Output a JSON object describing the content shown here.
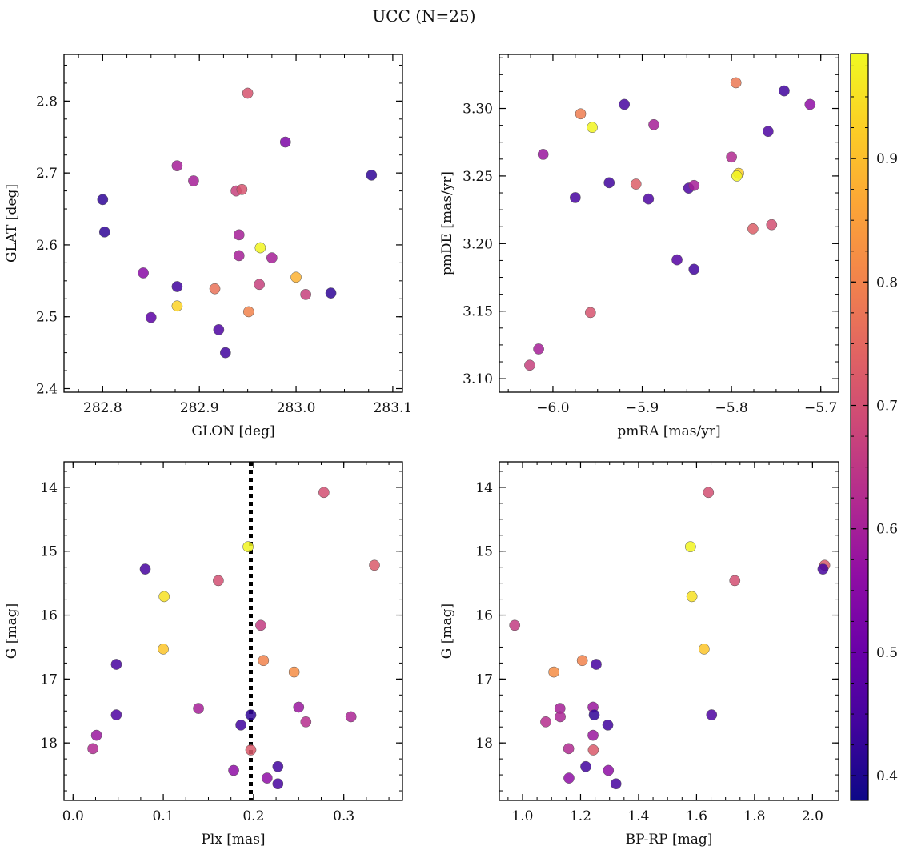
{
  "figure": {
    "title": "UCC (N=25)"
  },
  "colorbar": {
    "colormap": "plasma",
    "range": [
      0.38,
      0.985
    ],
    "ticks": [
      0.4,
      0.5,
      0.6,
      0.7,
      0.8,
      0.9
    ],
    "tick_labels": [
      "0.4",
      "0.5",
      "0.6",
      "0.7",
      "0.8",
      "0.9"
    ]
  },
  "chart_data": [
    {
      "type": "scatter",
      "xlabel": "GLON [deg]",
      "ylabel": "GLAT [deg]",
      "xlim": [
        282.76,
        283.11
      ],
      "ylim": [
        2.395,
        2.865
      ],
      "xticks": [
        282.8,
        282.9,
        283.0,
        283.1
      ],
      "xtick_labels": [
        "282.8",
        "282.9",
        "283.0",
        "283.1"
      ],
      "yticks": [
        2.4,
        2.5,
        2.6,
        2.7,
        2.8
      ],
      "ytick_labels": [
        "2.4",
        "2.5",
        "2.6",
        "2.7",
        "2.8"
      ],
      "points": [
        {
          "x": 282.8,
          "y": 2.663,
          "c": 0.42
        },
        {
          "x": 282.802,
          "y": 2.618,
          "c": 0.42
        },
        {
          "x": 282.842,
          "y": 2.561,
          "c": 0.55
        },
        {
          "x": 282.85,
          "y": 2.499,
          "c": 0.48
        },
        {
          "x": 282.877,
          "y": 2.71,
          "c": 0.6
        },
        {
          "x": 282.877,
          "y": 2.542,
          "c": 0.44
        },
        {
          "x": 282.877,
          "y": 2.515,
          "c": 0.93
        },
        {
          "x": 282.894,
          "y": 2.689,
          "c": 0.6
        },
        {
          "x": 282.916,
          "y": 2.539,
          "c": 0.77
        },
        {
          "x": 282.92,
          "y": 2.482,
          "c": 0.46
        },
        {
          "x": 282.927,
          "y": 2.45,
          "c": 0.44
        },
        {
          "x": 282.938,
          "y": 2.675,
          "c": 0.67
        },
        {
          "x": 282.941,
          "y": 2.614,
          "c": 0.6
        },
        {
          "x": 282.941,
          "y": 2.585,
          "c": 0.6
        },
        {
          "x": 282.944,
          "y": 2.677,
          "c": 0.71
        },
        {
          "x": 282.95,
          "y": 2.811,
          "c": 0.71
        },
        {
          "x": 282.951,
          "y": 2.507,
          "c": 0.8
        },
        {
          "x": 282.962,
          "y": 2.545,
          "c": 0.67
        },
        {
          "x": 282.963,
          "y": 2.596,
          "c": 0.98
        },
        {
          "x": 282.975,
          "y": 2.582,
          "c": 0.6
        },
        {
          "x": 282.989,
          "y": 2.743,
          "c": 0.53
        },
        {
          "x": 283.0,
          "y": 2.555,
          "c": 0.88
        },
        {
          "x": 283.01,
          "y": 2.531,
          "c": 0.67
        },
        {
          "x": 283.036,
          "y": 2.533,
          "c": 0.42
        },
        {
          "x": 283.078,
          "y": 2.697,
          "c": 0.42
        }
      ]
    },
    {
      "type": "scatter",
      "xlabel": "pmRA [mas/yr]",
      "ylabel": "pmDE [mas/yr]",
      "xlim": [
        -6.06,
        -5.68
      ],
      "ylim": [
        3.09,
        3.34
      ],
      "xticks": [
        -6.0,
        -5.9,
        -5.8,
        -5.7
      ],
      "xtick_labels": [
        "−6.0",
        "−5.9",
        "−5.8",
        "−5.7"
      ],
      "yticks": [
        3.1,
        3.15,
        3.2,
        3.25,
        3.3
      ],
      "ytick_labels": [
        "3.10",
        "3.15",
        "3.20",
        "3.25",
        "3.30"
      ],
      "points": [
        {
          "x": -6.026,
          "y": 3.11,
          "c": 0.67
        },
        {
          "x": -6.016,
          "y": 3.122,
          "c": 0.6
        },
        {
          "x": -6.011,
          "y": 3.266,
          "c": 0.58
        },
        {
          "x": -5.975,
          "y": 3.234,
          "c": 0.45
        },
        {
          "x": -5.969,
          "y": 3.296,
          "c": 0.79
        },
        {
          "x": -5.956,
          "y": 3.286,
          "c": 0.98
        },
        {
          "x": -5.958,
          "y": 3.149,
          "c": 0.71
        },
        {
          "x": -5.937,
          "y": 3.245,
          "c": 0.44
        },
        {
          "x": -5.92,
          "y": 3.303,
          "c": 0.45
        },
        {
          "x": -5.907,
          "y": 3.244,
          "c": 0.73
        },
        {
          "x": -5.893,
          "y": 3.233,
          "c": 0.46
        },
        {
          "x": -5.887,
          "y": 3.288,
          "c": 0.6
        },
        {
          "x": -5.861,
          "y": 3.188,
          "c": 0.47
        },
        {
          "x": -5.848,
          "y": 3.241,
          "c": 0.46
        },
        {
          "x": -5.842,
          "y": 3.243,
          "c": 0.6
        },
        {
          "x": -5.842,
          "y": 3.181,
          "c": 0.44
        },
        {
          "x": -5.8,
          "y": 3.264,
          "c": 0.62
        },
        {
          "x": -5.795,
          "y": 3.319,
          "c": 0.78
        },
        {
          "x": -5.792,
          "y": 3.252,
          "c": 0.92
        },
        {
          "x": -5.794,
          "y": 3.25,
          "c": 0.98
        },
        {
          "x": -5.776,
          "y": 3.211,
          "c": 0.73
        },
        {
          "x": -5.759,
          "y": 3.283,
          "c": 0.46
        },
        {
          "x": -5.755,
          "y": 3.214,
          "c": 0.7
        },
        {
          "x": -5.741,
          "y": 3.313,
          "c": 0.44
        },
        {
          "x": -5.712,
          "y": 3.303,
          "c": 0.56
        }
      ]
    },
    {
      "type": "scatter",
      "xlabel": "Plx [mas]",
      "ylabel": "G [mag]",
      "xlim": [
        -0.01,
        0.365
      ],
      "ylim": [
        18.9,
        13.6
      ],
      "xticks": [
        0.0,
        0.1,
        0.2,
        0.3
      ],
      "xtick_labels": [
        "0.0",
        "0.1",
        "0.2",
        "0.3"
      ],
      "yticks": [
        14,
        15,
        16,
        17,
        18
      ],
      "ytick_labels": [
        "14",
        "15",
        "16",
        "17",
        "18"
      ],
      "vline": 0.197,
      "points": [
        {
          "x": 0.278,
          "y": 14.08,
          "c": 0.7
        },
        {
          "x": 0.194,
          "y": 14.93,
          "c": 0.98
        },
        {
          "x": 0.334,
          "y": 15.22,
          "c": 0.72
        },
        {
          "x": 0.08,
          "y": 15.28,
          "c": 0.45
        },
        {
          "x": 0.161,
          "y": 15.46,
          "c": 0.7
        },
        {
          "x": 0.101,
          "y": 15.71,
          "c": 0.95
        },
        {
          "x": 0.208,
          "y": 16.16,
          "c": 0.66
        },
        {
          "x": 0.1,
          "y": 16.53,
          "c": 0.91
        },
        {
          "x": 0.211,
          "y": 16.71,
          "c": 0.8
        },
        {
          "x": 0.048,
          "y": 16.77,
          "c": 0.45
        },
        {
          "x": 0.245,
          "y": 16.89,
          "c": 0.82
        },
        {
          "x": 0.139,
          "y": 17.46,
          "c": 0.6
        },
        {
          "x": 0.25,
          "y": 17.44,
          "c": 0.58
        },
        {
          "x": 0.048,
          "y": 17.56,
          "c": 0.46
        },
        {
          "x": 0.197,
          "y": 17.56,
          "c": 0.42
        },
        {
          "x": 0.308,
          "y": 17.59,
          "c": 0.61
        },
        {
          "x": 0.258,
          "y": 17.67,
          "c": 0.63
        },
        {
          "x": 0.186,
          "y": 17.72,
          "c": 0.44
        },
        {
          "x": 0.026,
          "y": 17.88,
          "c": 0.58
        },
        {
          "x": 0.022,
          "y": 18.09,
          "c": 0.62
        },
        {
          "x": 0.197,
          "y": 18.11,
          "c": 0.72
        },
        {
          "x": 0.227,
          "y": 18.37,
          "c": 0.44
        },
        {
          "x": 0.178,
          "y": 18.43,
          "c": 0.56
        },
        {
          "x": 0.215,
          "y": 18.55,
          "c": 0.56
        },
        {
          "x": 0.227,
          "y": 18.64,
          "c": 0.45
        }
      ]
    },
    {
      "type": "scatter",
      "xlabel": "BP-RP [mag]",
      "ylabel": "G [mag]",
      "xlim": [
        0.92,
        2.09
      ],
      "ylim": [
        18.9,
        13.6
      ],
      "xticks": [
        1.0,
        1.2,
        1.4,
        1.6,
        1.8,
        2.0
      ],
      "xtick_labels": [
        "1.0",
        "1.2",
        "1.4",
        "1.6",
        "1.8",
        "2.0"
      ],
      "yticks": [
        14,
        15,
        16,
        17,
        18
      ],
      "ytick_labels": [
        "14",
        "15",
        "16",
        "17",
        "18"
      ],
      "points": [
        {
          "x": 1.641,
          "y": 14.08,
          "c": 0.7
        },
        {
          "x": 1.579,
          "y": 14.93,
          "c": 0.98
        },
        {
          "x": 2.042,
          "y": 15.22,
          "c": 0.72
        },
        {
          "x": 2.036,
          "y": 15.28,
          "c": 0.45
        },
        {
          "x": 1.732,
          "y": 15.46,
          "c": 0.7
        },
        {
          "x": 1.584,
          "y": 15.71,
          "c": 0.95
        },
        {
          "x": 0.973,
          "y": 16.16,
          "c": 0.66
        },
        {
          "x": 1.626,
          "y": 16.53,
          "c": 0.91
        },
        {
          "x": 1.206,
          "y": 16.71,
          "c": 0.8
        },
        {
          "x": 1.254,
          "y": 16.77,
          "c": 0.45
        },
        {
          "x": 1.108,
          "y": 16.89,
          "c": 0.82
        },
        {
          "x": 1.129,
          "y": 17.46,
          "c": 0.6
        },
        {
          "x": 1.243,
          "y": 17.44,
          "c": 0.58
        },
        {
          "x": 1.652,
          "y": 17.56,
          "c": 0.46
        },
        {
          "x": 1.247,
          "y": 17.56,
          "c": 0.42
        },
        {
          "x": 1.13,
          "y": 17.59,
          "c": 0.61
        },
        {
          "x": 1.08,
          "y": 17.67,
          "c": 0.63
        },
        {
          "x": 1.294,
          "y": 17.72,
          "c": 0.44
        },
        {
          "x": 1.243,
          "y": 17.88,
          "c": 0.58
        },
        {
          "x": 1.159,
          "y": 18.09,
          "c": 0.62
        },
        {
          "x": 1.244,
          "y": 18.11,
          "c": 0.72
        },
        {
          "x": 1.218,
          "y": 18.37,
          "c": 0.44
        },
        {
          "x": 1.296,
          "y": 18.43,
          "c": 0.56
        },
        {
          "x": 1.16,
          "y": 18.55,
          "c": 0.56
        },
        {
          "x": 1.322,
          "y": 18.64,
          "c": 0.45
        }
      ]
    }
  ]
}
